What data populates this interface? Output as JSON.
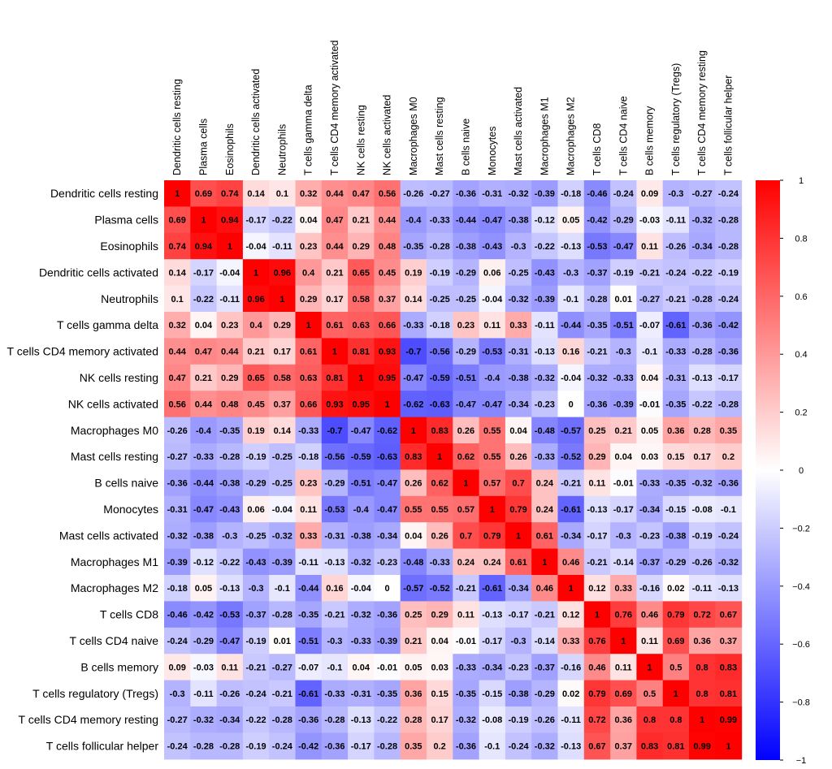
{
  "chart_data": {
    "type": "heatmap",
    "title": "",
    "rows": [
      "Dendritic cells resting",
      "Plasma cells",
      "Eosinophils",
      "Dendritic cells activated",
      "Neutrophils",
      "T cells gamma delta",
      "T cells CD4 memory activated",
      "NK cells resting",
      "NK cells activated",
      "Macrophages M0",
      "Mast cells resting",
      "B cells naive",
      "Monocytes",
      "Mast cells activated",
      "Macrophages M1",
      "Macrophages M2",
      "T cells CD8",
      "T cells CD4 naive",
      "B cells memory",
      "T cells regulatory (Tregs)",
      "T cells CD4 memory resting",
      "T cells follicular helper"
    ],
    "columns": [
      "Dendritic cells resting",
      "Plasma cells",
      "Eosinophils",
      "Dendritic cells activated",
      "Neutrophils",
      "T cells gamma delta",
      "T cells CD4 memory activated",
      "NK cells resting",
      "NK cells activated",
      "Macrophages M0",
      "Mast cells resting",
      "B cells naive",
      "Monocytes",
      "Mast cells activated",
      "Macrophages M1",
      "Macrophages M2",
      "T cells CD8",
      "T cells CD4 naive",
      "B cells memory",
      "T cells regulatory (Tregs)",
      "T cells CD4 memory resting",
      "T cells follicular helper"
    ],
    "values": [
      [
        1,
        0.69,
        0.74,
        0.14,
        0.1,
        0.32,
        0.44,
        0.47,
        0.56,
        -0.26,
        -0.27,
        -0.36,
        -0.31,
        -0.32,
        -0.39,
        -0.18,
        -0.46,
        -0.24,
        0.09,
        -0.3,
        -0.27,
        -0.24
      ],
      [
        0.69,
        1,
        0.94,
        -0.17,
        -0.22,
        0.04,
        0.47,
        0.21,
        0.44,
        -0.4,
        -0.33,
        -0.44,
        -0.47,
        -0.38,
        -0.12,
        0.05,
        -0.42,
        -0.29,
        -0.03,
        -0.11,
        -0.32,
        -0.28
      ],
      [
        0.74,
        0.94,
        1,
        -0.04,
        -0.11,
        0.23,
        0.44,
        0.29,
        0.48,
        -0.35,
        -0.28,
        -0.38,
        -0.43,
        -0.3,
        -0.22,
        -0.13,
        -0.53,
        -0.47,
        0.11,
        -0.26,
        -0.34,
        -0.28
      ],
      [
        0.14,
        -0.17,
        -0.04,
        1,
        0.96,
        0.4,
        0.21,
        0.65,
        0.45,
        0.19,
        -0.19,
        -0.29,
        0.06,
        -0.25,
        -0.43,
        -0.3,
        -0.37,
        -0.19,
        -0.21,
        -0.24,
        -0.22,
        -0.19
      ],
      [
        0.1,
        -0.22,
        -0.11,
        0.96,
        1,
        0.29,
        0.17,
        0.58,
        0.37,
        0.14,
        -0.25,
        -0.25,
        -0.04,
        -0.32,
        -0.39,
        -0.1,
        -0.28,
        0.01,
        -0.27,
        -0.21,
        -0.28,
        -0.24
      ],
      [
        0.32,
        0.04,
        0.23,
        0.4,
        0.29,
        1,
        0.61,
        0.63,
        0.66,
        -0.33,
        -0.18,
        0.23,
        0.11,
        0.33,
        -0.11,
        -0.44,
        -0.35,
        -0.51,
        -0.07,
        -0.61,
        -0.36,
        -0.42
      ],
      [
        0.44,
        0.47,
        0.44,
        0.21,
        0.17,
        0.61,
        1,
        0.81,
        0.93,
        -0.7,
        -0.56,
        -0.29,
        -0.53,
        -0.31,
        -0.13,
        0.16,
        -0.21,
        -0.3,
        -0.1,
        -0.33,
        -0.28,
        -0.36
      ],
      [
        0.47,
        0.21,
        0.29,
        0.65,
        0.58,
        0.63,
        0.81,
        1,
        0.95,
        -0.47,
        -0.59,
        -0.51,
        -0.4,
        -0.38,
        -0.32,
        -0.04,
        -0.32,
        -0.33,
        0.04,
        -0.31,
        -0.13,
        -0.17
      ],
      [
        0.56,
        0.44,
        0.48,
        0.45,
        0.37,
        0.66,
        0.93,
        0.95,
        1,
        -0.62,
        -0.63,
        -0.47,
        -0.47,
        -0.34,
        -0.23,
        0,
        -0.36,
        -0.39,
        -0.01,
        -0.35,
        -0.22,
        -0.28
      ],
      [
        -0.26,
        -0.4,
        -0.35,
        0.19,
        0.14,
        -0.33,
        -0.7,
        -0.47,
        -0.62,
        1,
        0.83,
        0.26,
        0.55,
        0.04,
        -0.48,
        -0.57,
        0.25,
        0.21,
        0.05,
        0.36,
        0.28,
        0.35
      ],
      [
        -0.27,
        -0.33,
        -0.28,
        -0.19,
        -0.25,
        -0.18,
        -0.56,
        -0.59,
        -0.63,
        0.83,
        1,
        0.62,
        0.55,
        0.26,
        -0.33,
        -0.52,
        0.29,
        0.04,
        0.03,
        0.15,
        0.17,
        0.2
      ],
      [
        -0.36,
        -0.44,
        -0.38,
        -0.29,
        -0.25,
        0.23,
        -0.29,
        -0.51,
        -0.47,
        0.26,
        0.62,
        1,
        0.57,
        0.7,
        0.24,
        -0.21,
        0.11,
        -0.01,
        -0.33,
        -0.35,
        -0.32,
        -0.36
      ],
      [
        -0.31,
        -0.47,
        -0.43,
        0.06,
        -0.04,
        0.11,
        -0.53,
        -0.4,
        -0.47,
        0.55,
        0.55,
        0.57,
        1,
        0.79,
        0.24,
        -0.61,
        -0.13,
        -0.17,
        -0.34,
        -0.15,
        -0.08,
        -0.1
      ],
      [
        -0.32,
        -0.38,
        -0.3,
        -0.25,
        -0.32,
        0.33,
        -0.31,
        -0.38,
        -0.34,
        0.04,
        0.26,
        0.7,
        0.79,
        1,
        0.61,
        -0.34,
        -0.17,
        -0.3,
        -0.23,
        -0.38,
        -0.19,
        -0.24
      ],
      [
        -0.39,
        -0.12,
        -0.22,
        -0.43,
        -0.39,
        -0.11,
        -0.13,
        -0.32,
        -0.23,
        -0.48,
        -0.33,
        0.24,
        0.24,
        0.61,
        1,
        0.46,
        -0.21,
        -0.14,
        -0.37,
        -0.29,
        -0.26,
        -0.32
      ],
      [
        -0.18,
        0.05,
        -0.13,
        -0.3,
        -0.1,
        -0.44,
        0.16,
        -0.04,
        0,
        -0.57,
        -0.52,
        -0.21,
        -0.61,
        -0.34,
        0.46,
        1,
        0.12,
        0.33,
        -0.16,
        0.02,
        -0.11,
        -0.13
      ],
      [
        -0.46,
        -0.42,
        -0.53,
        -0.37,
        -0.28,
        -0.35,
        -0.21,
        -0.32,
        -0.36,
        0.25,
        0.29,
        0.11,
        -0.13,
        -0.17,
        -0.21,
        0.12,
        1,
        0.76,
        0.46,
        0.79,
        0.72,
        0.67
      ],
      [
        -0.24,
        -0.29,
        -0.47,
        -0.19,
        0.01,
        -0.51,
        -0.3,
        -0.33,
        -0.39,
        0.21,
        0.04,
        -0.01,
        -0.17,
        -0.3,
        -0.14,
        0.33,
        0.76,
        1,
        0.11,
        0.69,
        0.36,
        0.37
      ],
      [
        0.09,
        -0.03,
        0.11,
        -0.21,
        -0.27,
        -0.07,
        -0.1,
        0.04,
        -0.01,
        0.05,
        0.03,
        -0.33,
        -0.34,
        -0.23,
        -0.37,
        -0.16,
        0.46,
        0.11,
        1,
        0.5,
        0.8,
        0.83
      ],
      [
        -0.3,
        -0.11,
        -0.26,
        -0.24,
        -0.21,
        -0.61,
        -0.33,
        -0.31,
        -0.35,
        0.36,
        0.15,
        -0.35,
        -0.15,
        -0.38,
        -0.29,
        0.02,
        0.79,
        0.69,
        0.5,
        1,
        0.8,
        0.81
      ],
      [
        -0.27,
        -0.32,
        -0.34,
        -0.22,
        -0.28,
        -0.36,
        -0.28,
        -0.13,
        -0.22,
        0.28,
        0.17,
        -0.32,
        -0.08,
        -0.19,
        -0.26,
        -0.11,
        0.72,
        0.36,
        0.8,
        0.8,
        1,
        0.99
      ],
      [
        -0.24,
        -0.28,
        -0.28,
        -0.19,
        -0.24,
        -0.42,
        -0.36,
        -0.17,
        -0.28,
        0.35,
        0.2,
        -0.36,
        -0.1,
        -0.24,
        -0.32,
        -0.13,
        0.67,
        0.37,
        0.83,
        0.81,
        0.99,
        1
      ]
    ],
    "color_scale": {
      "min": -1,
      "max": 1,
      "low_color": "#0000ff",
      "mid_color": "#ffffff",
      "high_color": "#ff0000",
      "ticks": [
        1,
        0.8,
        0.6,
        0.4,
        0.2,
        0,
        -0.2,
        -0.4,
        -0.6,
        -0.8,
        -1
      ],
      "tick_labels": [
        "1",
        "0.8",
        "0.6",
        "0.4",
        "0.2",
        "0",
        "−0.2",
        "−0.4",
        "−0.6",
        "−0.8",
        "−1"
      ]
    },
    "legend_placement": "right",
    "grid": false,
    "cell_labels": true
  }
}
